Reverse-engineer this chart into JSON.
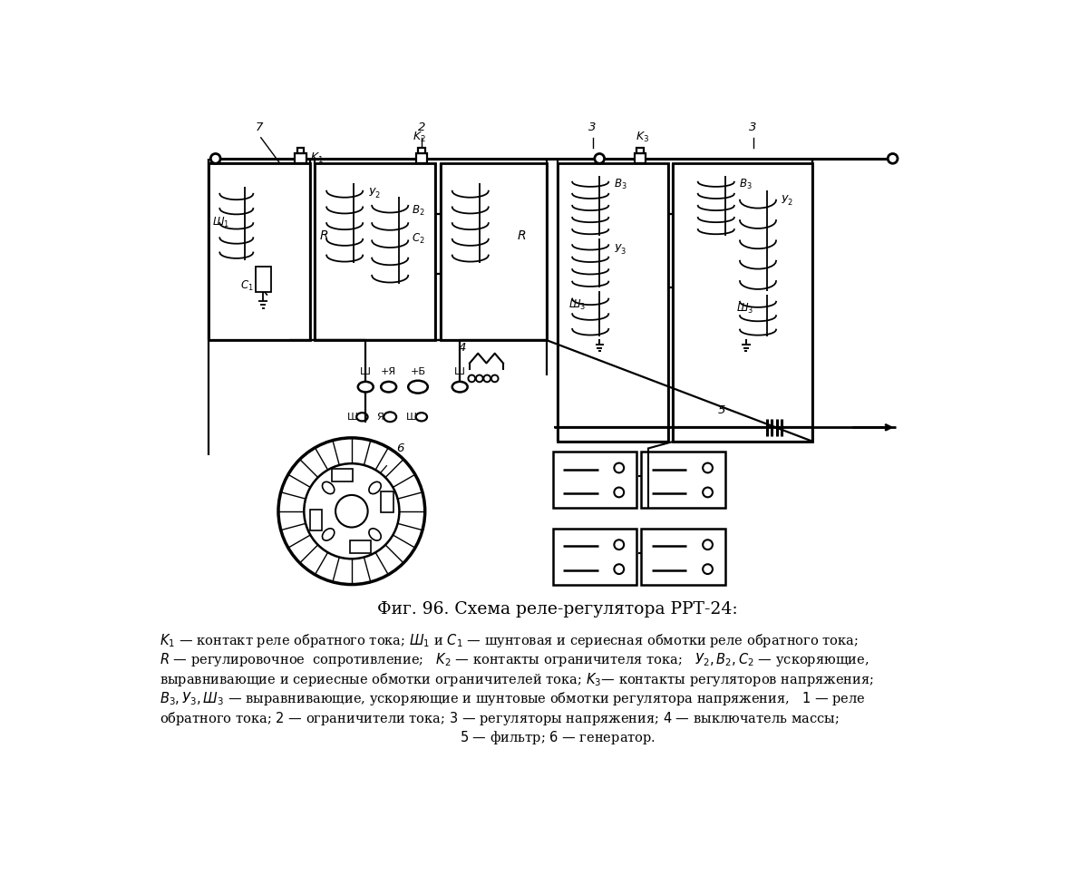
{
  "bg_color": "#ffffff",
  "title": "Фиг. 96. Схема реле-регулятора РРТ-24:",
  "cap1": "$K_1$ — контакт реле обратного тока; $Ш_1$ и $C_1$ — шунтовая и сериесная обмотки реле обратного тока;",
  "cap2": "$R$ — регулировочное  сопротивление;   $K_2$ — контакты ограничителя тока;   $У_2, B_2, C_2$ — ускоряющие,",
  "cap3": "выравнивающие и сериесные обмотки ограничителей тока; $K_3$— контакты регуляторов напряжения;",
  "cap4": "$B_3, У_3, Ш_3$ — выравнивающие, ускоряющие и шунтовые обмотки регулятора напряжения,   $1$ — реле",
  "cap5": "обратного тока; $2$ — ограничители тока; $3$ — регуляторы напряжения; $4$ — выключатель массы;",
  "cap6": "$5$ — фильтр; $6$ — генератор."
}
